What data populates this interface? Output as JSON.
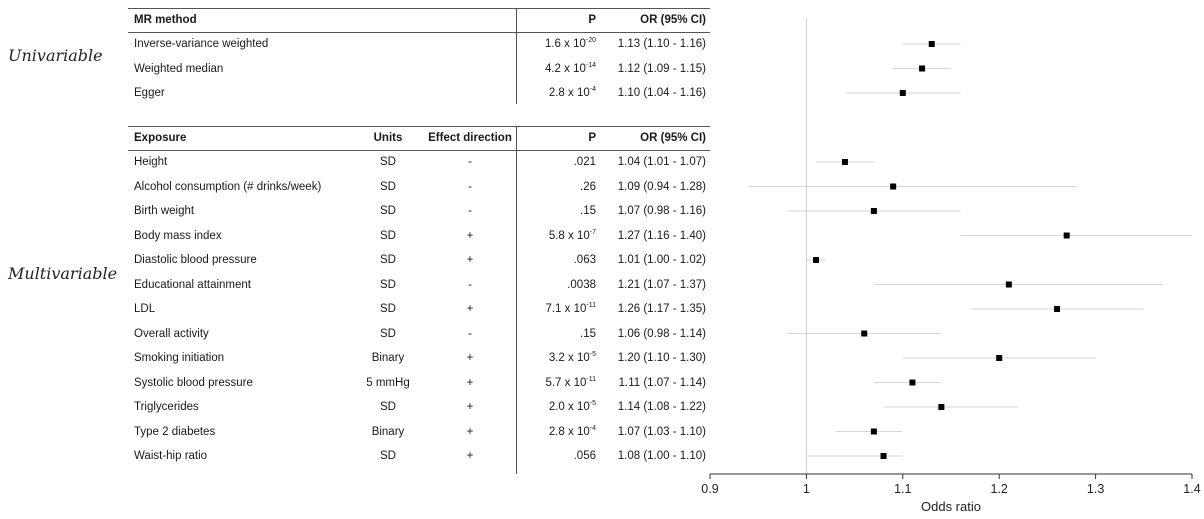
{
  "groups": {
    "univariable": "Univariable",
    "multivariable": "Multivariable"
  },
  "table1": {
    "headers": {
      "method": "MR method",
      "p": "P",
      "or": "OR (95% CI)"
    },
    "rows": [
      {
        "name": "Inverse-variance weighted",
        "p_base": "1.6 x 10",
        "p_exp": "-20",
        "or_text": "1.13 (1.10 - 1.16)"
      },
      {
        "name": "Weighted median",
        "p_base": "4.2 x 10",
        "p_exp": "-14",
        "or_text": "1.12 (1.09 - 1.15)"
      },
      {
        "name": "Egger",
        "p_base": "2.8 x 10",
        "p_exp": "-4",
        "or_text": "1.10 (1.04 - 1.16)"
      }
    ]
  },
  "table2": {
    "headers": {
      "exposure": "Exposure",
      "units": "Units",
      "direction": "Effect direction",
      "p": "P",
      "or": "OR (95% CI)"
    },
    "rows": [
      {
        "name": "Height",
        "units": "SD",
        "direction": "-",
        "p_base": ".021",
        "p_exp": "",
        "or_text": "1.04 (1.01 - 1.07)"
      },
      {
        "name": "Alcohol consumption (# drinks/week)",
        "units": "SD",
        "direction": "-",
        "p_base": ".26",
        "p_exp": "",
        "or_text": "1.09 (0.94 - 1.28)"
      },
      {
        "name": "Birth weight",
        "units": "SD",
        "direction": "-",
        "p_base": ".15",
        "p_exp": "",
        "or_text": "1.07 (0.98 - 1.16)"
      },
      {
        "name": "Body mass index",
        "units": "SD",
        "direction": "+",
        "p_base": "5.8 x 10",
        "p_exp": "-7",
        "or_text": "1.27 (1.16 - 1.40)"
      },
      {
        "name": "Diastolic blood pressure",
        "units": "SD",
        "direction": "+",
        "p_base": ".063",
        "p_exp": "",
        "or_text": "1.01 (1.00 - 1.02)"
      },
      {
        "name": "Educational attainment",
        "units": "SD",
        "direction": "-",
        "p_base": ".0038",
        "p_exp": "",
        "or_text": "1.21 (1.07 - 1.37)"
      },
      {
        "name": "LDL",
        "units": "SD",
        "direction": "+",
        "p_base": "7.1 x 10",
        "p_exp": "-11",
        "or_text": "1.26 (1.17 - 1.35)"
      },
      {
        "name": "Overall activity",
        "units": "SD",
        "direction": "-",
        "p_base": ".15",
        "p_exp": "",
        "or_text": "1.06 (0.98 - 1.14)"
      },
      {
        "name": "Smoking initiation",
        "units": "Binary",
        "direction": "+",
        "p_base": "3.2 x 10",
        "p_exp": "-5",
        "or_text": "1.20 (1.10 - 1.30)"
      },
      {
        "name": "Systolic blood pressure",
        "units": "5 mmHg",
        "direction": "+",
        "p_base": "5.7 x 10",
        "p_exp": "-11",
        "or_text": "1.11 (1.07 - 1.14)"
      },
      {
        "name": "Triglycerides",
        "units": "SD",
        "direction": "+",
        "p_base": "2.0 x 10",
        "p_exp": "-5",
        "or_text": "1.14 (1.08 - 1.22)"
      },
      {
        "name": "Type 2 diabetes",
        "units": "Binary",
        "direction": "+",
        "p_base": "2.8 x 10",
        "p_exp": "-4",
        "or_text": "1.07 (1.03 - 1.10)"
      },
      {
        "name": "Waist-hip ratio",
        "units": "SD",
        "direction": "+",
        "p_base": ".056",
        "p_exp": "",
        "or_text": "1.08 (1.00 - 1.10)"
      }
    ]
  },
  "chart_data": {
    "type": "scatter",
    "subtype": "forest",
    "xlabel": "Odds ratio",
    "xlim": [
      0.9,
      1.4
    ],
    "xticks": [
      0.9,
      1,
      1.1,
      1.2,
      1.3,
      1.4
    ],
    "xtick_labels": [
      "0.9",
      "1",
      "1.1",
      "1.2",
      "1.3",
      "1.4"
    ],
    "reference_line": 1,
    "grid": false,
    "point_color": "#000000",
    "ci_color": "#d6d6d6",
    "points": [
      {
        "label": "Inverse-variance weighted",
        "or": 1.13,
        "lo": 1.1,
        "hi": 1.16
      },
      {
        "label": "Weighted median",
        "or": 1.12,
        "lo": 1.09,
        "hi": 1.15
      },
      {
        "label": "Egger",
        "or": 1.1,
        "lo": 1.04,
        "hi": 1.16
      },
      {
        "label": "Height",
        "or": 1.04,
        "lo": 1.01,
        "hi": 1.07
      },
      {
        "label": "Alcohol consumption (# drinks/week)",
        "or": 1.09,
        "lo": 0.94,
        "hi": 1.28
      },
      {
        "label": "Birth weight",
        "or": 1.07,
        "lo": 0.98,
        "hi": 1.16
      },
      {
        "label": "Body mass index",
        "or": 1.27,
        "lo": 1.16,
        "hi": 1.4
      },
      {
        "label": "Diastolic blood pressure",
        "or": 1.01,
        "lo": 1.0,
        "hi": 1.02
      },
      {
        "label": "Educational attainment",
        "or": 1.21,
        "lo": 1.07,
        "hi": 1.37
      },
      {
        "label": "LDL",
        "or": 1.26,
        "lo": 1.17,
        "hi": 1.35
      },
      {
        "label": "Overall activity",
        "or": 1.06,
        "lo": 0.98,
        "hi": 1.14
      },
      {
        "label": "Smoking initiation",
        "or": 1.2,
        "lo": 1.1,
        "hi": 1.3
      },
      {
        "label": "Systolic blood pressure",
        "or": 1.11,
        "lo": 1.07,
        "hi": 1.14
      },
      {
        "label": "Triglycerides",
        "or": 1.14,
        "lo": 1.08,
        "hi": 1.22
      },
      {
        "label": "Type 2 diabetes",
        "or": 1.07,
        "lo": 1.03,
        "hi": 1.1
      },
      {
        "label": "Waist-hip ratio",
        "or": 1.08,
        "lo": 1.0,
        "hi": 1.1
      }
    ]
  }
}
